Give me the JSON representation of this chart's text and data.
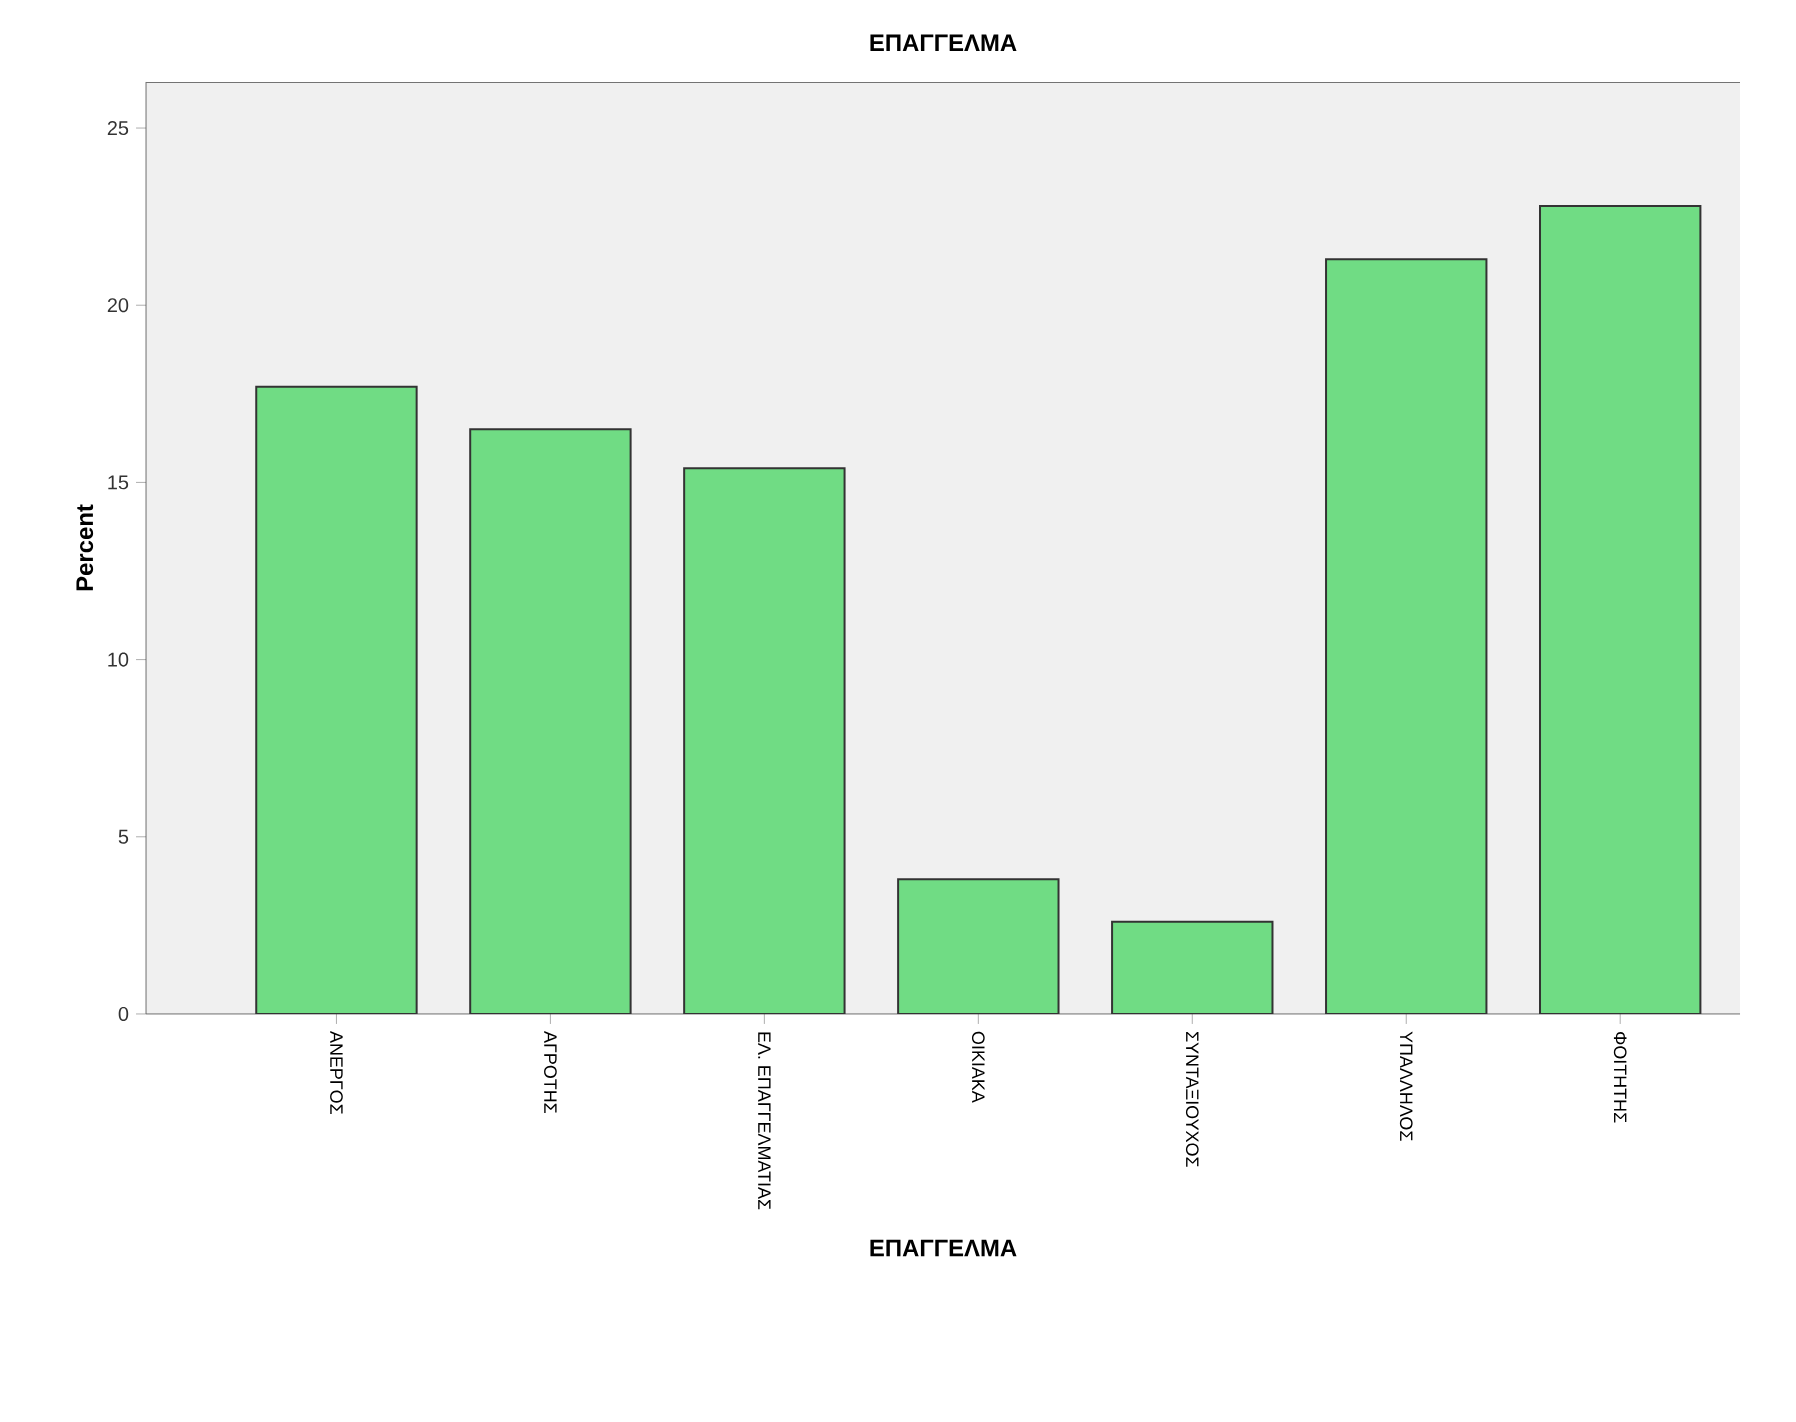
{
  "chart_data": {
    "type": "bar",
    "title": "ΕΠΑΓΓΕΛΜΑ",
    "xlabel": "ΕΠΑΓΓΕΛΜΑ",
    "ylabel": "Percent",
    "categories": [
      "ΑΝΕΡΓΟΣ",
      "ΑΓΡΟΤΗΣ",
      "ΕΛ. ΕΠΑΓΓΕΛΜΑΤΙΑΣ",
      "ΟΙΚΙΑΚΑ",
      "ΣΥΝΤΑΞΙΟΥΧΟΣ",
      "ΥΠΑΛΛΗΛΟΣ",
      "ΦΟΙΤΗΤΗΣ"
    ],
    "values": [
      17.7,
      16.5,
      15.4,
      3.8,
      2.6,
      21.3,
      22.8
    ],
    "color": "#70dc84",
    "ylim": [
      0,
      26.3
    ],
    "yticks": [
      0,
      5,
      10,
      15,
      20,
      25
    ],
    "grid": false
  }
}
